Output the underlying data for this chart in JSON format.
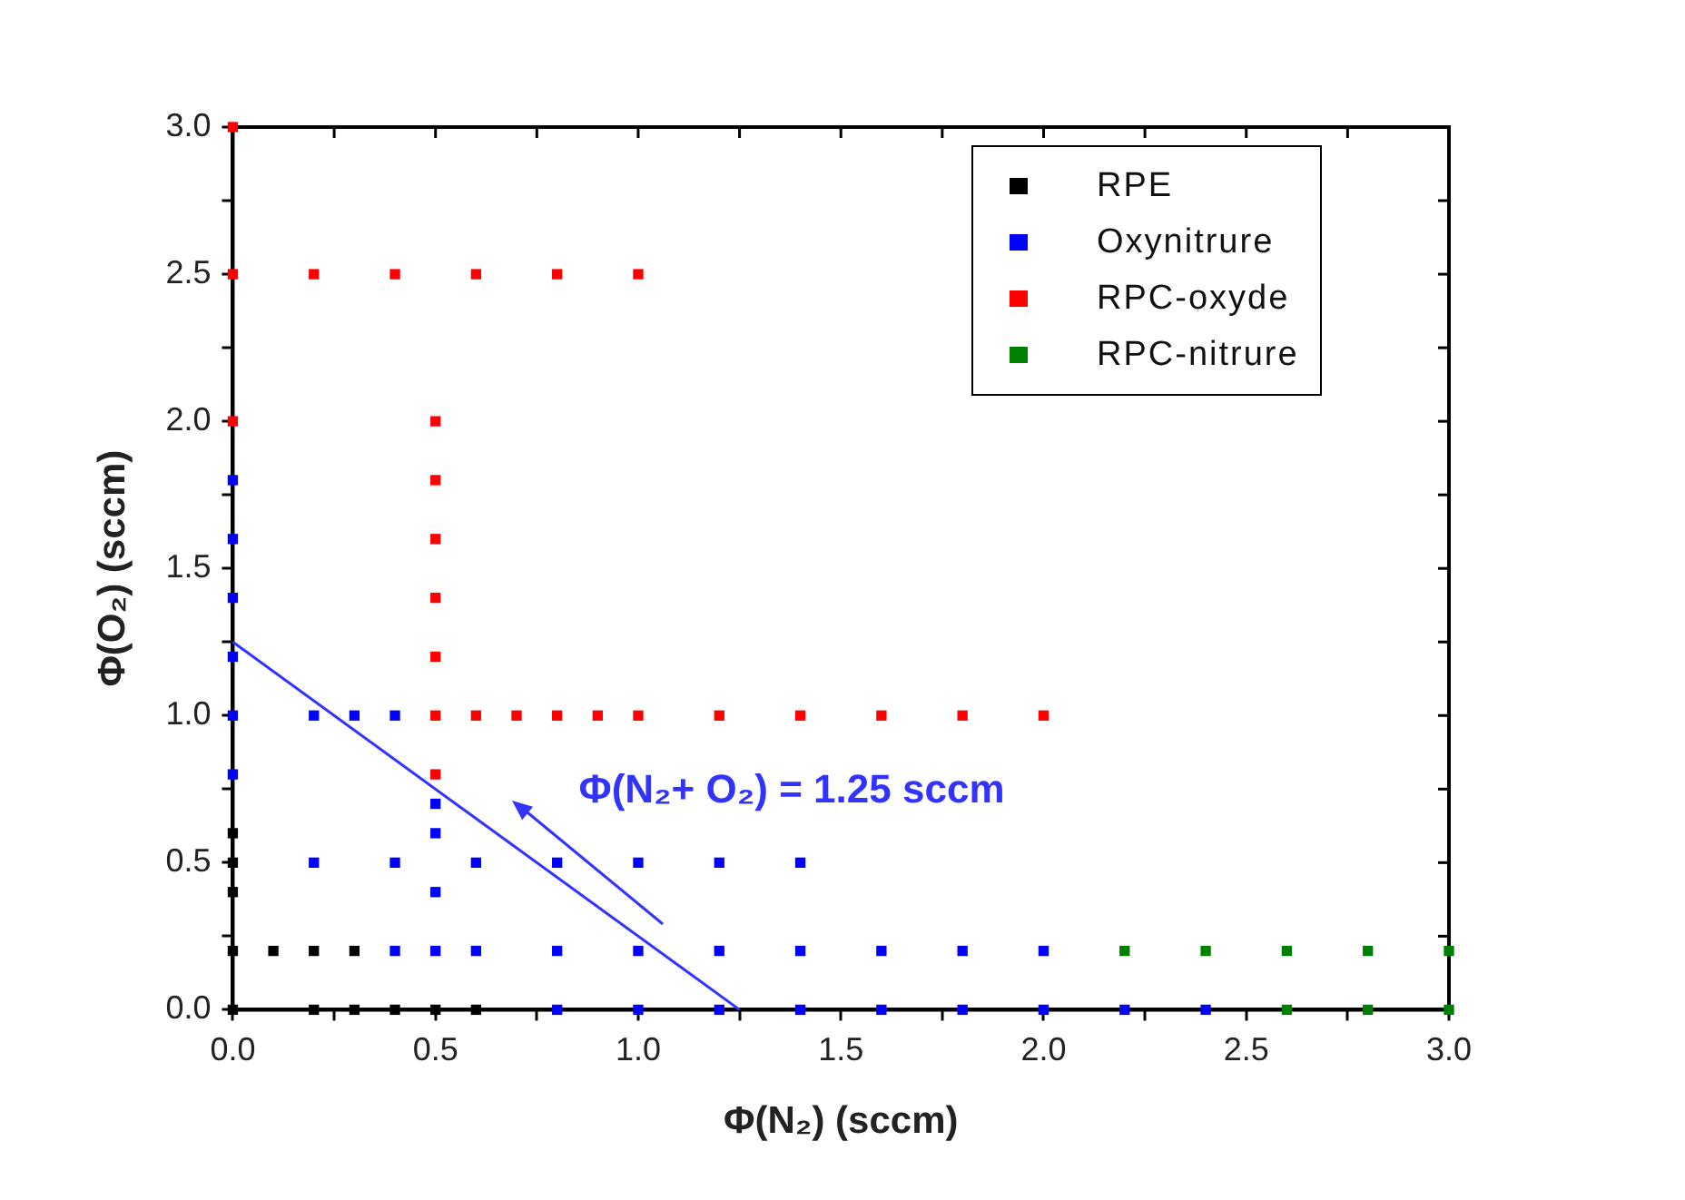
{
  "chart_data": {
    "type": "scatter",
    "xlabel": "Φ(N₂) (sccm)",
    "ylabel": "Φ(O₂) (sccm)",
    "xlim": [
      0,
      3
    ],
    "ylim": [
      0,
      3
    ],
    "xticks": [
      {
        "value": 0,
        "label": "0.0"
      },
      {
        "value": 0.25,
        "label": null
      },
      {
        "value": 0.5,
        "label": "0.5"
      },
      {
        "value": 0.75,
        "label": null
      },
      {
        "value": 1,
        "label": "1.0"
      },
      {
        "value": 1.25,
        "label": null
      },
      {
        "value": 1.5,
        "label": "1.5"
      },
      {
        "value": 1.75,
        "label": null
      },
      {
        "value": 2,
        "label": "2.0"
      },
      {
        "value": 2.25,
        "label": null
      },
      {
        "value": 2.5,
        "label": "2.5"
      },
      {
        "value": 2.75,
        "label": null
      },
      {
        "value": 3,
        "label": "3.0"
      }
    ],
    "yticks": [
      {
        "value": 0,
        "label": "0.0"
      },
      {
        "value": 0.25,
        "label": null
      },
      {
        "value": 0.5,
        "label": "0.5"
      },
      {
        "value": 0.75,
        "label": null
      },
      {
        "value": 1,
        "label": "1.0"
      },
      {
        "value": 1.25,
        "label": null
      },
      {
        "value": 1.5,
        "label": "1.5"
      },
      {
        "value": 1.75,
        "label": null
      },
      {
        "value": 2,
        "label": "2.0"
      },
      {
        "value": 2.25,
        "label": null
      },
      {
        "value": 2.5,
        "label": "2.5"
      },
      {
        "value": 2.75,
        "label": null
      },
      {
        "value": 3,
        "label": "3.0"
      }
    ],
    "grid": false,
    "legend": "top right",
    "marker": "square",
    "series": [
      {
        "name": "RPE",
        "color": "#000000",
        "x": [
          0,
          0,
          0,
          0,
          0,
          0.1,
          0.2,
          0.3,
          0.2,
          0.3,
          0.4,
          0.5,
          0.6
        ],
        "values": [
          0.6,
          0.5,
          0.4,
          0.2,
          0,
          0.2,
          0.2,
          0.2,
          0,
          0,
          0,
          0,
          0
        ]
      },
      {
        "name": "Oxynitrure",
        "color": "#0000ff",
        "x": [
          0,
          0,
          0,
          0,
          0,
          0,
          0.2,
          0.3,
          0.4,
          0.5,
          0.5,
          0.5,
          0.2,
          0.4,
          0.6,
          0.8,
          1.0,
          1.2,
          1.4,
          0.4,
          0.5,
          0.6,
          0.8,
          1.0,
          1.2,
          1.4,
          1.6,
          1.8,
          2.0,
          0.8,
          1.0,
          1.2,
          1.4,
          1.6,
          1.8,
          2.0,
          2.2,
          2.4
        ],
        "values": [
          1.8,
          1.6,
          1.4,
          1.2,
          1.0,
          0.8,
          1.0,
          1.0,
          1.0,
          0.7,
          0.6,
          0.4,
          0.5,
          0.5,
          0.5,
          0.5,
          0.5,
          0.5,
          0.5,
          0.2,
          0.2,
          0.2,
          0.2,
          0.2,
          0.2,
          0.2,
          0.2,
          0.2,
          0.2,
          0,
          0,
          0,
          0,
          0,
          0,
          0,
          0,
          0
        ]
      },
      {
        "name": "RPC-oxyde",
        "color": "#ff0000",
        "x": [
          0,
          0,
          0.2,
          0.4,
          0.6,
          0.8,
          1.0,
          0,
          0.5,
          0.5,
          0.5,
          0.5,
          0.5,
          0.5,
          0.5,
          0.6,
          0.7,
          0.8,
          0.9,
          1.0,
          1.2,
          1.4,
          1.6,
          1.8,
          2.0
        ],
        "values": [
          3.0,
          2.5,
          2.5,
          2.5,
          2.5,
          2.5,
          2.5,
          2.0,
          2.0,
          1.8,
          1.6,
          1.4,
          1.2,
          1.0,
          0.8,
          1.0,
          1.0,
          1.0,
          1.0,
          1.0,
          1.0,
          1.0,
          1.0,
          1.0,
          1.0
        ]
      },
      {
        "name": "RPC-nitrure",
        "color": "#008000",
        "x": [
          2.2,
          2.4,
          2.6,
          2.8,
          3.0,
          2.6,
          2.8,
          3.0
        ],
        "values": [
          0.2,
          0.2,
          0.2,
          0.2,
          0.2,
          0,
          0,
          0
        ]
      },
      {
        "type": "line",
        "color": "#3333ff",
        "x": [
          0,
          1.25
        ],
        "values": [
          1.25,
          0
        ],
        "marker": "none"
      }
    ],
    "annotations": [
      "Φ(N₂+ O₂) = 1.25 sccm"
    ]
  }
}
